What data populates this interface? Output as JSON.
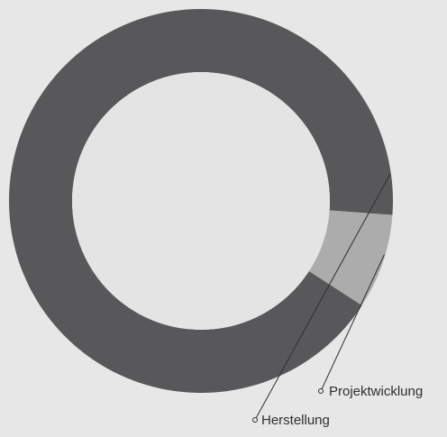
{
  "chart_data": {
    "type": "pie",
    "style": "donut",
    "categories": [
      "Herstellung",
      "Projektwicklung"
    ],
    "values": [
      92,
      8
    ],
    "unit": "percent (estimated from slice angles)",
    "colors": {
      "Herstellung": "#58585a",
      "Projektwicklung": "#acacad",
      "hole": "#e4e4e5",
      "background": "#e7e7e7",
      "leader_line": "#2f2f31"
    },
    "title": "",
    "legend": "none (callout labels next to the ring)"
  }
}
